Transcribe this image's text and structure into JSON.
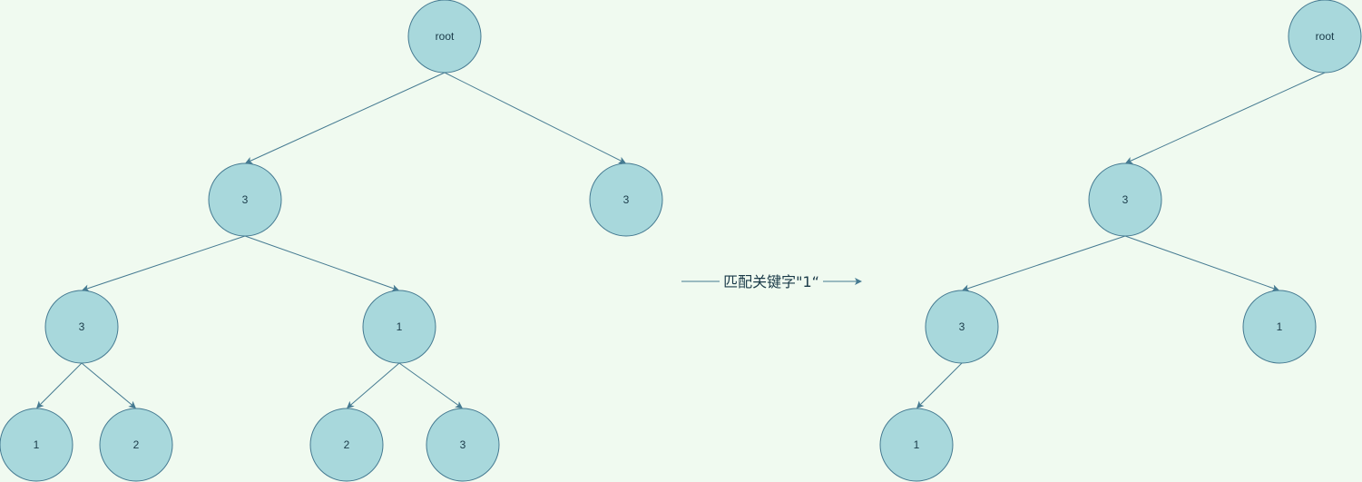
{
  "colors": {
    "background": "#f0faf0",
    "node_fill": "#a8d8dc",
    "node_stroke": "#457a91",
    "edge": "#457a91",
    "text": "#1a3a48"
  },
  "transition": {
    "label": "匹配关键字\"1“"
  },
  "trees": [
    {
      "id": "original-tree",
      "nodes": [
        {
          "id": "a-root",
          "label": "root"
        },
        {
          "id": "a-3-left",
          "label": "3"
        },
        {
          "id": "a-3-right",
          "label": "3"
        },
        {
          "id": "a-3-ll",
          "label": "3"
        },
        {
          "id": "a-1-lr",
          "label": "1"
        },
        {
          "id": "a-1-lll",
          "label": "1"
        },
        {
          "id": "a-2-llr",
          "label": "2"
        },
        {
          "id": "a-2-lrl",
          "label": "2"
        },
        {
          "id": "a-3-lrr",
          "label": "3"
        }
      ],
      "edges": [
        [
          "a-root",
          "a-3-left"
        ],
        [
          "a-root",
          "a-3-right"
        ],
        [
          "a-3-left",
          "a-3-ll"
        ],
        [
          "a-3-left",
          "a-1-lr"
        ],
        [
          "a-3-ll",
          "a-1-lll"
        ],
        [
          "a-3-ll",
          "a-2-llr"
        ],
        [
          "a-1-lr",
          "a-2-lrl"
        ],
        [
          "a-1-lr",
          "a-3-lrr"
        ]
      ]
    },
    {
      "id": "matched-tree",
      "nodes": [
        {
          "id": "b-root",
          "label": "root"
        },
        {
          "id": "b-3",
          "label": "3"
        },
        {
          "id": "b-3-l",
          "label": "3"
        },
        {
          "id": "b-1-r",
          "label": "1"
        },
        {
          "id": "b-1-ll",
          "label": "1"
        }
      ],
      "edges": [
        [
          "b-root",
          "b-3"
        ],
        [
          "b-3",
          "b-3-l"
        ],
        [
          "b-3",
          "b-1-r"
        ],
        [
          "b-3-l",
          "b-1-ll"
        ]
      ]
    }
  ]
}
